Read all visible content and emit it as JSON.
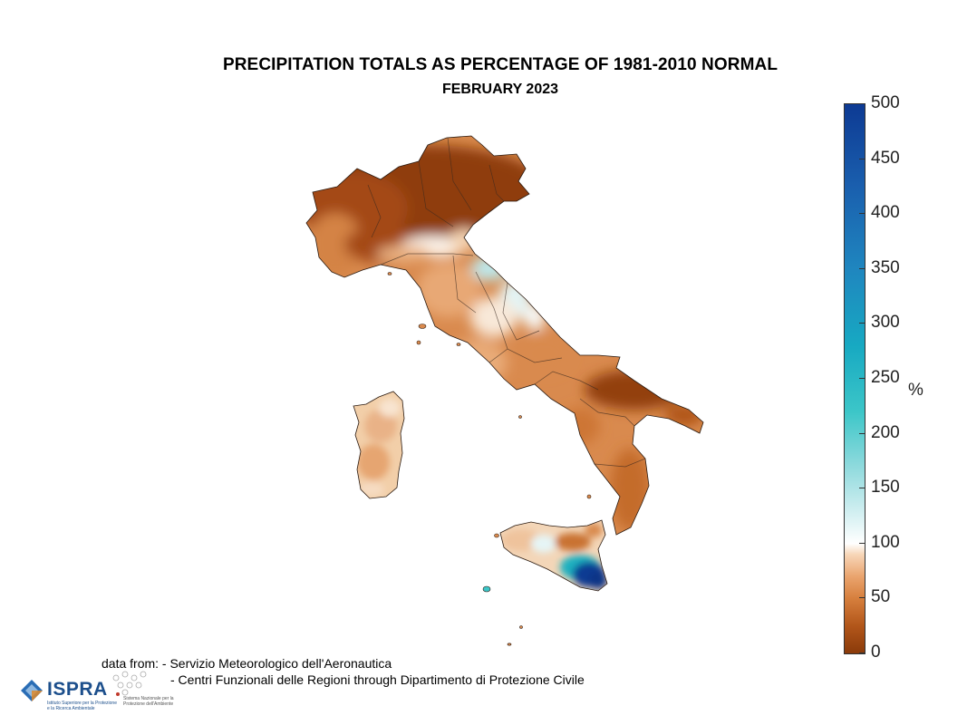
{
  "title": "PRECIPITATION TOTALS AS PERCENTAGE OF 1981-2010 NORMAL",
  "subtitle": "FEBRUARY 2023",
  "colorbar": {
    "min": 0,
    "max": 500,
    "unit": "%",
    "ticks": [
      "0",
      "50",
      "100",
      "150",
      "200",
      "250",
      "300",
      "350",
      "400",
      "450",
      "500"
    ],
    "colors": {
      "very_dry": "#8a3a0a",
      "dry": "#d67f3d",
      "normal": "#ffffff",
      "wet": "#3cc6c8",
      "very_wet": "#0d3a93"
    }
  },
  "source": {
    "line1": "data from: - Servizio Meteorologico dell'Aeronautica",
    "line2": "- Centri Funzionali delle Regioni through Dipartimento di Protezione Civile"
  },
  "logos": {
    "ispra_name": "ISPRA",
    "ispra_subtitle": "Istituto Superiore per la Protezione e la Ricerca Ambientale",
    "snpa_subtitle": "Sistema Nazionale per la Protezione dell'Ambiente"
  },
  "map_regions": [
    {
      "name": "Nord Italia",
      "value_pct": 15
    },
    {
      "name": "Emilia-Romagna appennino",
      "value_pct": 110
    },
    {
      "name": "Marche costa",
      "value_pct": 140
    },
    {
      "name": "Toscana",
      "value_pct": 55
    },
    {
      "name": "Lazio",
      "value_pct": 60
    },
    {
      "name": "Puglia",
      "value_pct": 25
    },
    {
      "name": "Calabria",
      "value_pct": 45
    },
    {
      "name": "Sardegna",
      "value_pct": 70
    },
    {
      "name": "Sicilia ovest",
      "value_pct": 90
    },
    {
      "name": "Sicilia sud-est",
      "value_pct": 480
    }
  ]
}
